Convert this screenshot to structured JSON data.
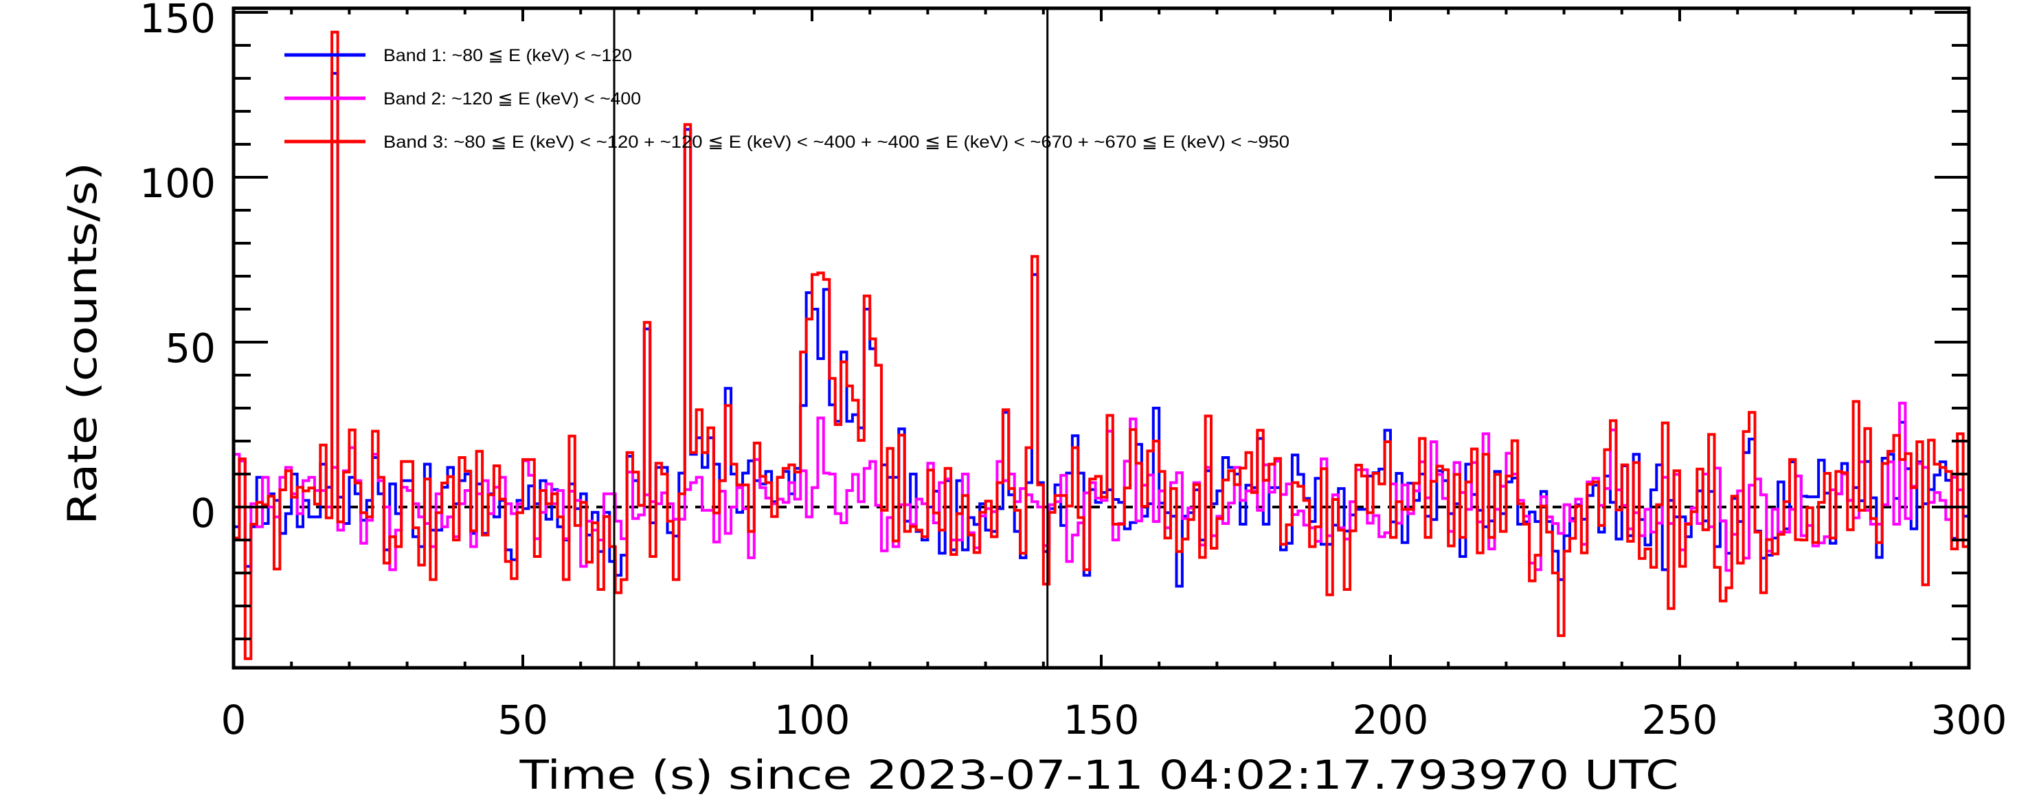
{
  "chart_data": {
    "type": "line",
    "style": "histogram-step",
    "title": "",
    "xlabel": "Time (s) since 2023-07-11 04:02:17.793970 UTC",
    "ylabel": "Rate (counts/s)",
    "xlim": [
      0,
      300
    ],
    "ylim": [
      -48.75,
      151.25
    ],
    "x_ticks": [
      {
        "value": 0,
        "label": "0"
      },
      {
        "value": 50,
        "label": "50"
      },
      {
        "value": 100,
        "label": "100"
      },
      {
        "value": 150,
        "label": "150"
      },
      {
        "value": 200,
        "label": "200"
      },
      {
        "value": 250,
        "label": "250"
      },
      {
        "value": 300,
        "label": "300"
      }
    ],
    "y_ticks": [
      {
        "value": 0,
        "label": "0"
      },
      {
        "value": 50,
        "label": "50"
      },
      {
        "value": 100,
        "label": "100"
      },
      {
        "value": 150,
        "label": "150"
      }
    ],
    "x_minor_step": 10,
    "y_minor_step": 10,
    "bin_width": 1,
    "bin_start": 0,
    "grid": false,
    "legend_position": "top-left",
    "reference_line": {
      "y": 0,
      "style": "dashed",
      "color": "#000000"
    },
    "vertical_markers": [
      65.8,
      140.7
    ],
    "legend": [
      {
        "label": "Band 1: ~80 ≦ E (keV) < ~120",
        "color": "#0000ff"
      },
      {
        "label": "Band 2: ~120 ≦ E (keV) < ~400",
        "color": "#ff00ff"
      },
      {
        "label": "Band 3: ~80 ≦ E (keV) < ~120 + ~120 ≦ E (keV) < ~400 + ~400 ≦ E (keV) < ~670 + ~670 ≦ E (keV) < ~950",
        "color": "#ff0000"
      }
    ],
    "series": [
      {
        "name": "Band 1",
        "color": "#0000ff",
        "values": [
          -6,
          14,
          -18,
          -6,
          9,
          -5,
          4,
          2,
          -8,
          -2,
          10,
          -6,
          2,
          -3,
          -3,
          13,
          6,
          131.5,
          3,
          -5,
          9,
          4,
          -4,
          2,
          15,
          4,
          -13,
          7,
          -2,
          8,
          8,
          -9,
          -12,
          13,
          -7,
          -7,
          6,
          12,
          1,
          8,
          10,
          -8,
          7,
          -8,
          4,
          -3,
          2,
          -13,
          -16,
          2,
          -0.5,
          6.4,
          1,
          8,
          -3.7,
          5.3,
          -6,
          -10,
          7,
          -0.5,
          4,
          -8.5,
          -1.6,
          -13.5,
          -1.6,
          -16.5,
          -20.7,
          -14.6,
          15.4,
          8,
          0.5,
          54,
          -4.8,
          12,
          12,
          -7.8,
          -8.8,
          10.3,
          114.5,
          16,
          21,
          12,
          21,
          13,
          8,
          36,
          10,
          -1.6,
          10.3,
          14,
          8,
          7,
          10.8,
          1.6,
          9,
          10.8,
          4,
          11.7,
          30.8,
          65,
          60,
          45,
          66,
          31,
          26,
          47,
          26,
          28,
          24,
          60,
          48,
          43,
          12.8,
          9,
          9,
          23.7,
          -4.3,
          10,
          -7.4,
          -10,
          0,
          4.8,
          -14,
          8,
          -13,
          8,
          -13,
          -3.2,
          -5.3,
          1,
          -7,
          -7.4,
          -0.5,
          28.7,
          3.7,
          -7.4,
          -15.4,
          7.4,
          70.5,
          7.4,
          -13.5,
          -0.5,
          6.7,
          -5.6,
          10.3,
          21.6,
          10.3,
          -20.7,
          5.3,
          1.4,
          4.4,
          5.2,
          2.3,
          1.4,
          -6.6,
          -4.7,
          19,
          -2.8,
          1,
          30,
          1.2,
          -1.7,
          -2.8,
          -24,
          -2.8,
          -1.7,
          5.2,
          -10,
          11,
          1,
          4.9,
          15,
          12,
          10,
          -5.2,
          6.6,
          5.9,
          20.8,
          -5.2,
          5.9,
          5.9,
          -13,
          -11,
          15.8,
          9.9,
          2.6,
          -4.4,
          8.7,
          -11.3,
          -11.3,
          -5.5,
          5.6,
          -7.3,
          -2.4,
          -0.7,
          -0.7,
          9.4,
          10.4,
          11.5,
          23.3,
          -4.5,
          10.2,
          -10.8,
          7.2,
          2,
          10,
          -2.8,
          -3.8,
          11,
          8,
          -2,
          1,
          -15,
          13,
          3.8,
          -1,
          -6,
          -4.2,
          10.8,
          -2,
          7.6,
          8.8,
          -5.2,
          -4.5,
          -1.5,
          -4.4,
          4.7,
          -4.4,
          -13.4,
          -22,
          -8.7,
          -3.5,
          0.7,
          -3.7,
          3.5,
          6.6,
          -7.6,
          9.4,
          1.4,
          -9.7,
          12.5,
          -8.7,
          16,
          -3.8,
          -11.5,
          5.2,
          12.8,
          -19,
          2,
          -3,
          -3,
          -9,
          -0.3,
          4.9,
          -4.2,
          4.7,
          -12,
          -4.2,
          -14,
          2.6,
          -4.4,
          16.5,
          20.6,
          -7.3,
          -15.5,
          -14.6,
          -9.4,
          7.6,
          -6.6,
          13.7,
          9.4,
          3.3,
          3.1,
          3.1,
          14.2,
          4.2,
          -11,
          4,
          13.2,
          2,
          5.9,
          1.9,
          13.8,
          2.8,
          -15.3,
          14.8,
          16,
          2.6,
          25.7,
          11.6,
          -6.6,
          13.7,
          1,
          5.3,
          9.7,
          13.7,
          8.1,
          -9.5,
          5.2,
          -2.8
        ]
      },
      {
        "name": "Band 2",
        "color": "#ff00ff",
        "values": [
          16,
          14,
          -20,
          1,
          -6,
          9,
          0,
          -3,
          9,
          12,
          4,
          -2,
          8,
          9,
          5,
          5,
          0,
          12,
          -7,
          11,
          18,
          8,
          -11,
          -4,
          16,
          8,
          0,
          -19,
          -7,
          6,
          5,
          1,
          -3,
          -5,
          -12,
          4,
          -6,
          -3,
          -9,
          1,
          5,
          -12,
          4,
          8,
          -2,
          6,
          9,
          1,
          -2,
          1,
          14,
          9.6,
          -9.6,
          -1.6,
          7,
          1,
          5,
          -9.6,
          4.8,
          2,
          -18,
          -4.3,
          -7,
          -10,
          4,
          4,
          -4.3,
          -9.6,
          10.6,
          -3.5,
          -2.4,
          3.7,
          1.6,
          1,
          4.3,
          1,
          -3.7,
          -3.7,
          5.3,
          7.4,
          9,
          -1,
          -1,
          -10.6,
          4.8,
          -8,
          0,
          5.9,
          -0.5,
          -15.4,
          14.4,
          5.9,
          2.7,
          1,
          2.4,
          1.4,
          7.4,
          2.4,
          11,
          -3,
          5.9,
          27,
          10.3,
          10,
          -2,
          -4.8,
          5,
          9.9,
          1.6,
          11.7,
          13.8,
          0.5,
          -13.3,
          -3.2,
          -12,
          0.7,
          0.7,
          -5.3,
          2.4,
          1,
          13.3,
          -4.8,
          7.4,
          8.5,
          -10,
          -10,
          10,
          -7.8,
          -12.4,
          -2.7,
          -0.5,
          -1.4,
          13.8,
          8,
          10,
          1.6,
          5.6,
          3.7,
          1.6,
          0,
          -11.7,
          0.7,
          1.6,
          9.6,
          -16.5,
          -8.5,
          -4.8,
          4.3,
          7.4,
          2.7,
          2,
          23,
          -10,
          -5,
          13.9,
          26.7,
          -4.2,
          6.6,
          9.7,
          -4.4,
          4.9,
          -6.3,
          7.4,
          10.4,
          -3.5,
          -0.3,
          7.4,
          -11.5,
          12,
          -8.7,
          -2.8,
          -5,
          1.2,
          12,
          2,
          4.9,
          4.9,
          -1,
          12.8,
          4.5,
          13.9,
          3.8,
          7,
          -2.3,
          -1.2,
          -5.5,
          -6.3,
          -10.4,
          14.6,
          -8.7,
          3.7,
          -6.3,
          -9.7,
          1.6,
          11.3,
          11.3,
          -4.9,
          -2.6,
          -9,
          -7.8,
          7,
          -4.9,
          6.7,
          -2,
          4.9,
          13.7,
          2.8,
          19.8,
          9.9,
          2.6,
          -7.4,
          13.5,
          4.4,
          -0.7,
          13.5,
          -4.5,
          22.2,
          -12.7,
          -0.7,
          6.3,
          16.3,
          10,
          2,
          -2.8,
          -17,
          -19,
          3.1,
          -3,
          -5,
          -8,
          0.7,
          -4.2,
          2.4,
          -11.3,
          7.6,
          8.7,
          0.5,
          5.6,
          23.4,
          5.2,
          0.5,
          -6.6,
          -1.7,
          -8.7,
          -0.7,
          -7.6,
          -4.9,
          9,
          -5,
          9.9,
          -13,
          -5,
          -0.3,
          -5,
          10,
          -6,
          11.8,
          -4.2,
          -19.2,
          -8.3,
          4.9,
          -15.5,
          6.6,
          8.5,
          3.7,
          -13.4,
          -0.7,
          -7.6,
          -7.6,
          -0.7,
          9.4,
          -8.7,
          -5.6,
          -11.8,
          -10.9,
          -9,
          5.2,
          4,
          10,
          2,
          -3.3,
          13.7,
          -1,
          -5.2,
          -5.2,
          0.7,
          13.7,
          -5.2,
          31.5,
          -3.5,
          6.3,
          13.2,
          12,
          1.4,
          4.4,
          2,
          -3.8,
          9,
          5.2,
          0
        ]
      },
      {
        "name": "Band 3",
        "color": "#ff0000",
        "values": [
          -9.4,
          14.6,
          -46,
          -5.2,
          1.4,
          0.7,
          3.3,
          -18.8,
          5.2,
          11,
          3,
          6,
          4.9,
          5.8,
          0.9,
          18.8,
          -3.3,
          144,
          -4.5,
          10.6,
          23.4,
          7.3,
          -1.7,
          -3,
          23,
          9,
          -17,
          -9,
          -12,
          13.8,
          13.8,
          -6.3,
          -17.6,
          8.5,
          -22,
          -1.7,
          7.3,
          9.2,
          -10,
          15,
          10.9,
          -7.2,
          16.9,
          -8.5,
          3.7,
          12.5,
          2.4,
          -16.5,
          -21.7,
          -1.7,
          14.4,
          14.4,
          -15,
          5,
          1,
          4,
          -3,
          -22,
          21.5,
          -5.6,
          1.4,
          -16.7,
          -4.8,
          -25,
          -2.9,
          -12,
          -26,
          -22,
          16.5,
          10.6,
          0.5,
          56,
          -15,
          13.3,
          10,
          -4.3,
          -22,
          4,
          116,
          16.5,
          29.5,
          16.5,
          24,
          -1.8,
          8,
          30.8,
          13,
          6.7,
          6.7,
          -7.4,
          19.4,
          9.3,
          7.4,
          -2.9,
          9,
          11.7,
          12.8,
          10.6,
          47,
          57,
          70.5,
          71,
          69,
          39,
          25,
          44,
          36.7,
          32.4,
          20.2,
          64,
          51,
          43,
          -1,
          17.8,
          -10.3,
          21.8,
          -7.4,
          -5.9,
          -7,
          -9,
          11.2,
          -1.8,
          -7,
          11.7,
          -14.4,
          -2,
          3.5,
          -8.5,
          -13.8,
          -1.6,
          1.8,
          -9,
          7.4,
          29.5,
          5.6,
          -1,
          -14,
          18,
          76,
          6.7,
          -23.4,
          -1.6,
          3.5,
          3.5,
          0.3,
          18,
          -3.2,
          -19,
          8.5,
          9.3,
          3,
          27.8,
          -5.2,
          -5.2,
          5.8,
          23.5,
          13.3,
          0.2,
          17,
          20,
          10.8,
          -9.4,
          5.6,
          -13.5,
          -9.7,
          -3.8,
          6.8,
          -15.3,
          27.6,
          -12.5,
          -3.5,
          8.2,
          11,
          6.8,
          11.8,
          16.5,
          4.4,
          23.3,
          8.1,
          13,
          14.7,
          -11.3,
          -5.4,
          7.4,
          6.3,
          2,
          -12,
          -6,
          11.6,
          -26.6,
          2.3,
          -7,
          -25,
          -7.2,
          12.7,
          9.4,
          -1.7,
          10.2,
          7,
          19.8,
          -9.2,
          1.6,
          -0.7,
          -0.7,
          7.2,
          20.8,
          -9.2,
          7.8,
          12.4,
          11.3,
          -11.8,
          9.9,
          -9.2,
          7.6,
          17.6,
          -13.9,
          16,
          -9.2,
          9.9,
          -7.4,
          9.4,
          20.1,
          1,
          -5.2,
          -22.4,
          -14.6,
          0.3,
          -7.6,
          -20,
          -39,
          -13.4,
          -9.5,
          0.3,
          -13.9,
          6.9,
          7.6,
          -5.6,
          17.4,
          26.2,
          -0.9,
          12.8,
          -10.4,
          13.5,
          -15.6,
          -12.7,
          -18.3,
          0.7,
          25.5,
          -30.8,
          11,
          -18,
          -5.2,
          -1.4,
          11.5,
          -6.9,
          22,
          -18.3,
          -28.5,
          -24.5,
          3.3,
          -17,
          22.9,
          28.7,
          -7.6,
          -26,
          -9.9,
          -14.2,
          -8.3,
          1.6,
          14.4,
          -9.9,
          -10,
          -0.2,
          -10.8,
          1.4,
          10.2,
          -9.4,
          10.8,
          10.4,
          -6.9,
          32,
          -1,
          23.8,
          -3.5,
          -10.8,
          13.2,
          16.9,
          21.7,
          14.4,
          16.2,
          5.9,
          19.8,
          -23.6,
          20.3,
          13,
          12,
          10.8,
          -12.7,
          22.2,
          -12
        ]
      }
    ]
  }
}
